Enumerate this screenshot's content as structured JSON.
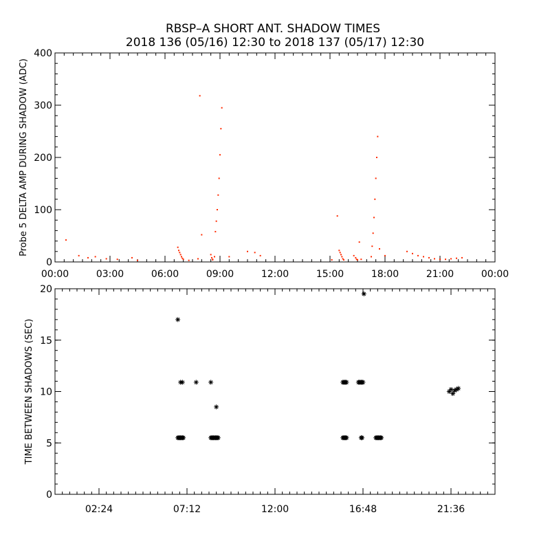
{
  "header": {
    "title": "RBSP–A SHORT ANT. SHADOW TIMES",
    "subtitle": "2018 136 (05/16) 12:30 to 2018 137 (05/17) 12:30"
  },
  "colors": {
    "amp_points": "#ff2a00",
    "interval_points": "#000000",
    "axes": "#000000"
  },
  "chart_data": [
    {
      "type": "scatter",
      "ylabel": "Probe 5 DELTA AMP DURING SHADOW (ADC)",
      "xlim": [
        0,
        24
      ],
      "ylim": [
        0,
        400
      ],
      "x_ticks": [
        0,
        3,
        6,
        9,
        12,
        15,
        18,
        21,
        24
      ],
      "x_tick_labels": [
        "00:00",
        "03:00",
        "06:00",
        "09:00",
        "12:00",
        "15:00",
        "18:00",
        "21:00",
        "00:00"
      ],
      "y_ticks": [
        0,
        100,
        200,
        300,
        400
      ],
      "y_tick_labels": [
        "0",
        "100",
        "200",
        "300",
        "400"
      ],
      "series": [
        {
          "color": "#ff2a00",
          "points": [
            [
              0.6,
              42
            ],
            [
              1.3,
              12
            ],
            [
              1.8,
              8
            ],
            [
              2.2,
              10
            ],
            [
              2.8,
              6
            ],
            [
              3.4,
              5
            ],
            [
              4.2,
              8
            ],
            [
              4.5,
              3
            ],
            [
              6.7,
              28
            ],
            [
              6.75,
              22
            ],
            [
              6.8,
              18
            ],
            [
              6.85,
              14
            ],
            [
              6.9,
              10
            ],
            [
              6.95,
              7
            ],
            [
              7.0,
              5
            ],
            [
              7.3,
              3
            ],
            [
              7.8,
              6
            ],
            [
              7.9,
              318
            ],
            [
              8.0,
              52
            ],
            [
              8.5,
              14
            ],
            [
              8.55,
              8
            ],
            [
              8.6,
              5
            ],
            [
              8.6,
              4
            ],
            [
              8.7,
              10
            ],
            [
              8.75,
              58
            ],
            [
              8.8,
              78
            ],
            [
              8.85,
              100
            ],
            [
              8.9,
              128
            ],
            [
              8.95,
              160
            ],
            [
              9.0,
              205
            ],
            [
              9.05,
              255
            ],
            [
              9.1,
              295
            ],
            [
              9.5,
              10
            ],
            [
              10.5,
              20
            ],
            [
              10.9,
              18
            ],
            [
              11.2,
              12
            ],
            [
              15.1,
              4
            ],
            [
              15.4,
              88
            ],
            [
              15.5,
              22
            ],
            [
              15.55,
              18
            ],
            [
              15.6,
              14
            ],
            [
              15.65,
              10
            ],
            [
              15.7,
              6
            ],
            [
              15.75,
              4
            ],
            [
              16.3,
              12
            ],
            [
              16.4,
              8
            ],
            [
              16.45,
              5
            ],
            [
              16.5,
              4
            ],
            [
              16.6,
              38
            ],
            [
              16.7,
              5
            ],
            [
              17.25,
              10
            ],
            [
              17.3,
              30
            ],
            [
              17.35,
              55
            ],
            [
              17.4,
              85
            ],
            [
              17.45,
              120
            ],
            [
              17.5,
              160
            ],
            [
              17.55,
              200
            ],
            [
              17.6,
              240
            ],
            [
              17.7,
              25
            ],
            [
              18.0,
              12
            ],
            [
              19.2,
              20
            ],
            [
              19.5,
              16
            ],
            [
              19.8,
              12
            ],
            [
              20.1,
              10
            ],
            [
              20.4,
              8
            ],
            [
              20.7,
              6
            ],
            [
              21.0,
              5
            ],
            [
              21.3,
              5
            ],
            [
              21.6,
              6
            ],
            [
              21.9,
              7
            ],
            [
              22.2,
              8
            ]
          ]
        }
      ]
    },
    {
      "type": "scatter",
      "ylabel": "TIME BETWEEN SHADOWS (SEC)",
      "xlim": [
        0,
        24
      ],
      "ylim": [
        0,
        20
      ],
      "x_ticks": [
        2.4,
        7.2,
        12.0,
        16.8,
        21.6
      ],
      "x_tick_labels": [
        "02:24",
        "07:12",
        "12:00",
        "16:48",
        "21:36"
      ],
      "y_ticks": [
        0,
        5,
        10,
        15,
        20
      ],
      "y_tick_labels": [
        "0",
        "5",
        "10",
        "15",
        "20"
      ],
      "series": [
        {
          "color": "#000000",
          "points": [
            [
              6.7,
              17.0
            ],
            [
              6.7,
              5.5
            ],
            [
              6.75,
              5.5
            ],
            [
              6.8,
              5.5
            ],
            [
              6.85,
              5.5
            ],
            [
              6.9,
              5.5
            ],
            [
              6.95,
              5.5
            ],
            [
              7.0,
              5.5
            ],
            [
              6.85,
              10.9
            ],
            [
              6.95,
              10.9
            ],
            [
              7.7,
              10.9
            ],
            [
              8.5,
              10.9
            ],
            [
              8.5,
              5.5
            ],
            [
              8.55,
              5.5
            ],
            [
              8.6,
              5.5
            ],
            [
              8.65,
              5.5
            ],
            [
              8.7,
              5.5
            ],
            [
              8.75,
              5.5
            ],
            [
              8.8,
              5.5
            ],
            [
              8.85,
              5.5
            ],
            [
              8.9,
              5.5
            ],
            [
              8.8,
              8.5
            ],
            [
              15.7,
              10.9
            ],
            [
              15.75,
              10.9
            ],
            [
              15.8,
              10.9
            ],
            [
              15.85,
              10.9
            ],
            [
              15.9,
              10.9
            ],
            [
              15.7,
              5.5
            ],
            [
              15.75,
              5.5
            ],
            [
              15.8,
              5.5
            ],
            [
              15.85,
              5.5
            ],
            [
              15.9,
              5.5
            ],
            [
              16.55,
              10.9
            ],
            [
              16.6,
              10.9
            ],
            [
              16.65,
              10.9
            ],
            [
              16.7,
              10.9
            ],
            [
              16.75,
              10.9
            ],
            [
              16.8,
              10.9
            ],
            [
              16.7,
              5.5
            ],
            [
              16.75,
              5.5
            ],
            [
              16.85,
              19.5
            ],
            [
              17.5,
              5.5
            ],
            [
              17.55,
              5.5
            ],
            [
              17.6,
              5.5
            ],
            [
              17.65,
              5.5
            ],
            [
              17.7,
              5.5
            ],
            [
              17.75,
              5.5
            ],
            [
              17.8,
              5.5
            ],
            [
              21.5,
              10.0
            ],
            [
              21.6,
              10.2
            ],
            [
              21.7,
              9.8
            ],
            [
              21.8,
              10.1
            ],
            [
              21.9,
              10.2
            ],
            [
              22.0,
              10.3
            ]
          ]
        }
      ]
    }
  ]
}
